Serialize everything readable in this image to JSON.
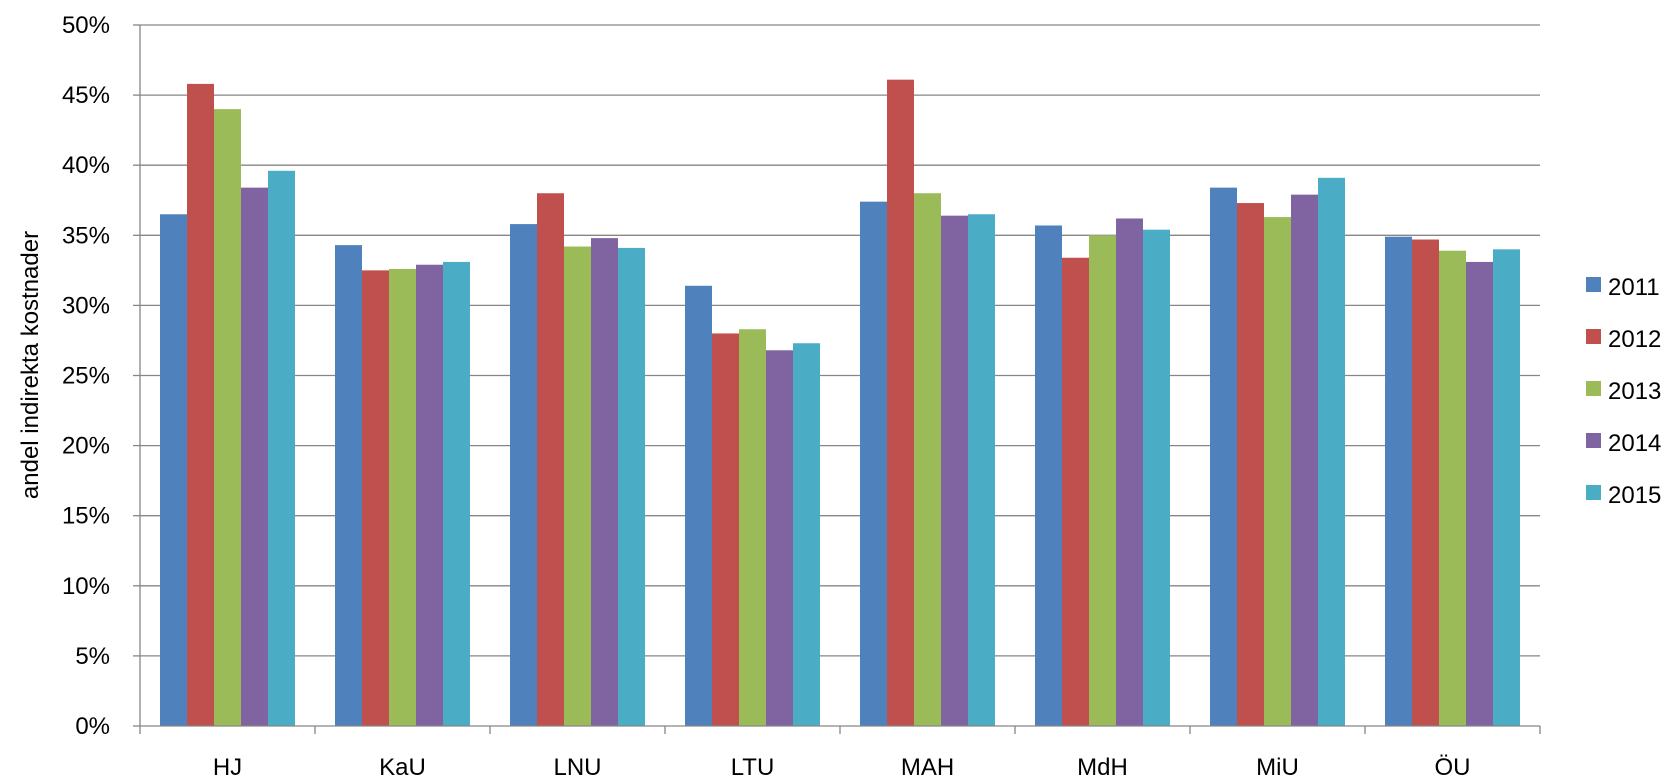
{
  "chart_data": {
    "type": "bar",
    "title": "",
    "xlabel": "",
    "ylabel": "andel indirekta kostnader",
    "ylim": [
      0,
      50
    ],
    "y_tick_step": 5,
    "y_tick_suffix": "%",
    "grid": true,
    "legend_position": "right",
    "categories": [
      "HJ",
      "KaU",
      "LNU",
      "LTU",
      "MAH",
      "MdH",
      "MiU",
      "ÖU"
    ],
    "series": [
      {
        "name": "2011",
        "color": "#4F81BD",
        "values": [
          36.5,
          34.3,
          35.8,
          31.4,
          37.4,
          35.7,
          38.4,
          34.9
        ]
      },
      {
        "name": "2012",
        "color": "#C0504D",
        "values": [
          45.8,
          32.5,
          38.0,
          28.0,
          46.1,
          33.4,
          37.3,
          34.7
        ]
      },
      {
        "name": "2013",
        "color": "#9BBB59",
        "values": [
          44.0,
          32.6,
          34.2,
          28.3,
          38.0,
          35.0,
          36.3,
          33.9
        ]
      },
      {
        "name": "2014",
        "color": "#8064A2",
        "values": [
          38.4,
          32.9,
          34.8,
          26.8,
          36.4,
          36.2,
          37.9,
          33.1
        ]
      },
      {
        "name": "2015",
        "color": "#4BACC6",
        "values": [
          39.6,
          33.1,
          34.1,
          27.3,
          36.5,
          35.4,
          39.1,
          34.0
        ]
      }
    ]
  }
}
